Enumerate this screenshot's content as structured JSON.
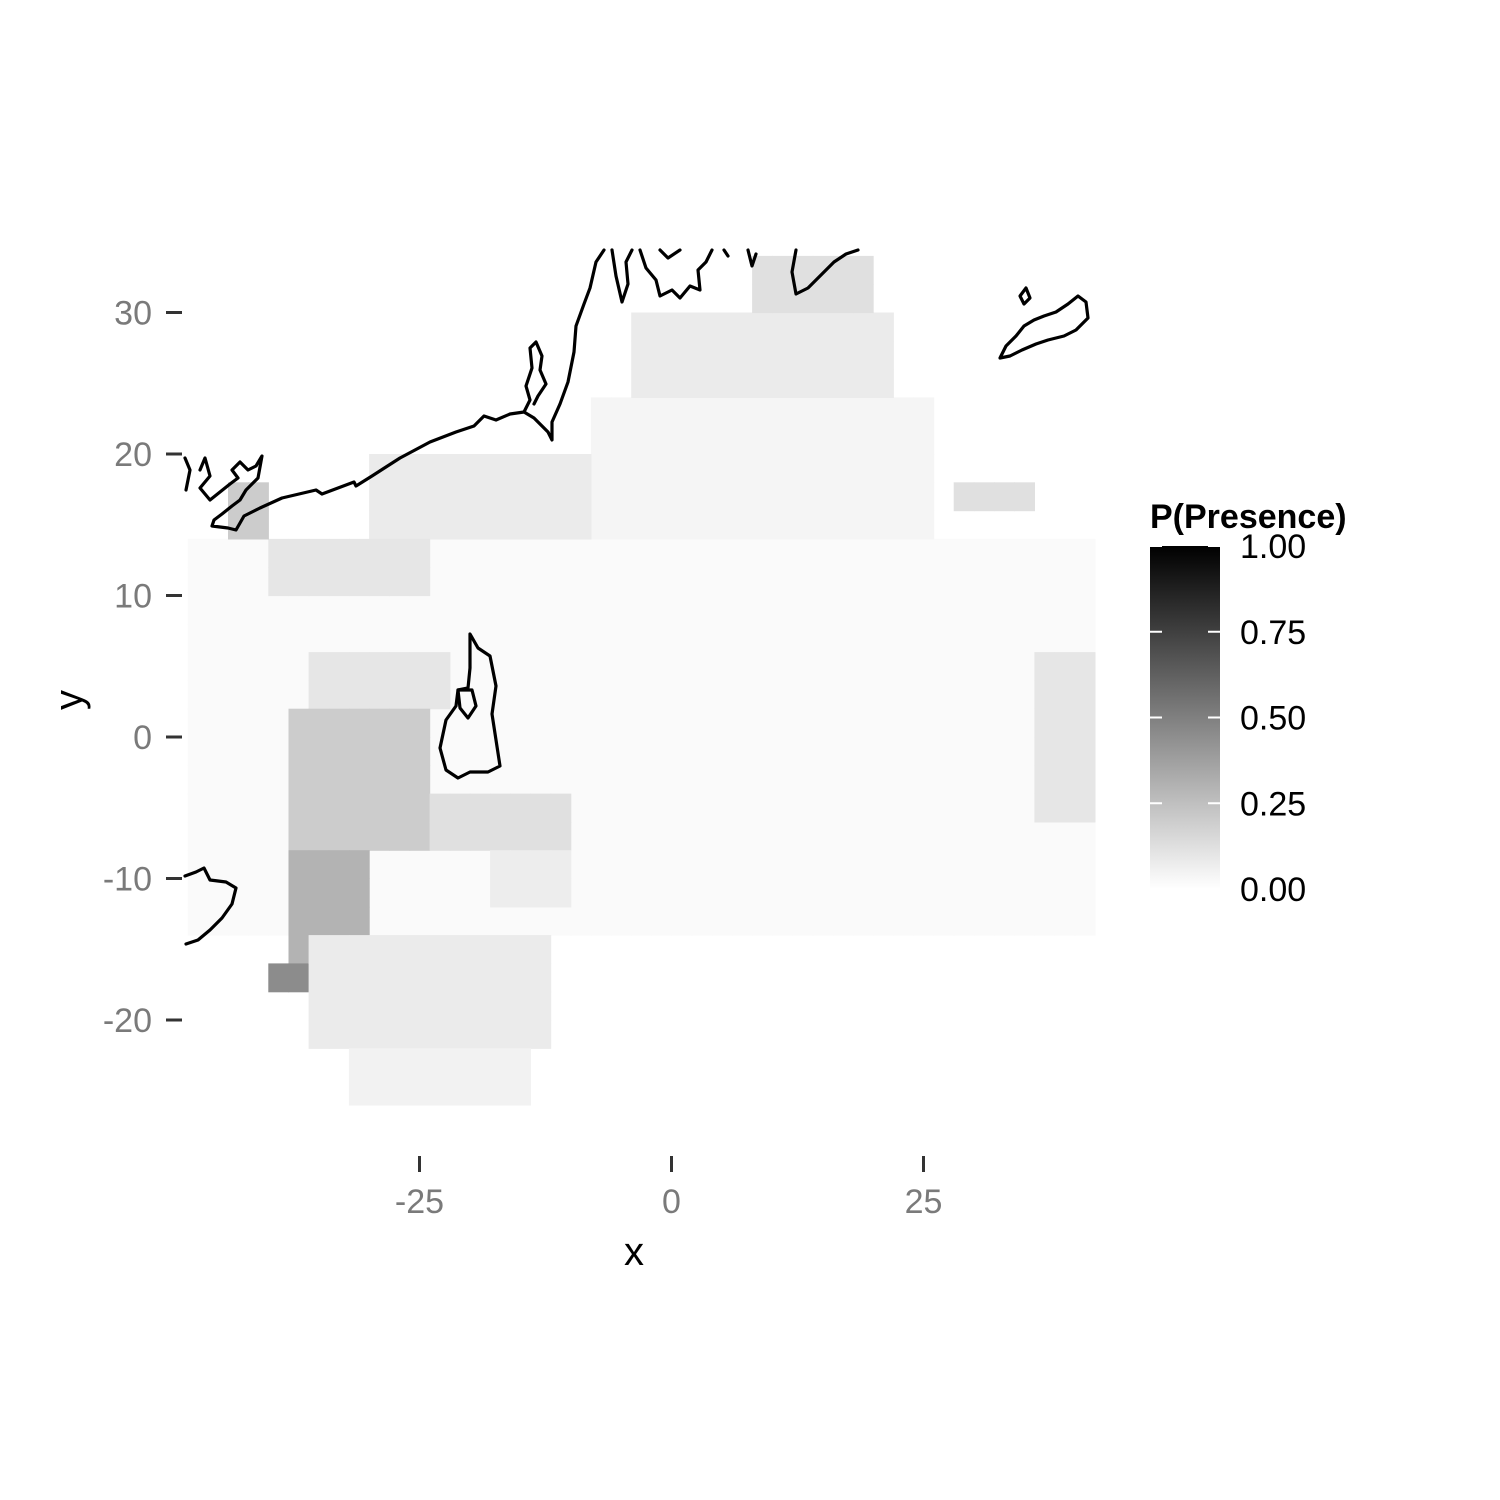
{
  "chart_data": {
    "type": "heatmap",
    "x_axis": {
      "label": "x",
      "ticks": [
        -25,
        0,
        25
      ],
      "tick_labels": [
        "-25",
        "0",
        "25"
      ]
    },
    "y_axis": {
      "label": "y",
      "ticks": [
        -20,
        -10,
        0,
        10,
        20,
        30
      ],
      "tick_labels": [
        "-20",
        "-10",
        "0",
        "10",
        "20",
        "30"
      ]
    },
    "legend": {
      "title": "P(Presence)",
      "placement": "right",
      "breaks": [
        1.0,
        0.75,
        0.5,
        0.25,
        0.0
      ],
      "labels": [
        "1.00",
        "0.75",
        "0.50",
        "0.25",
        "0.00"
      ],
      "color_low": "#ffffff",
      "color_high": "#000000"
    },
    "cell_size": 2,
    "grid": false,
    "overlay": "coastline outlines (black)",
    "regions": [
      {
        "x": [
          -48,
          42
        ],
        "y": [
          -14,
          14
        ],
        "value": 0.02
      },
      {
        "x": [
          -8,
          26
        ],
        "y": [
          14,
          24
        ],
        "value": 0.04
      },
      {
        "x": [
          -4,
          22
        ],
        "y": [
          24,
          30
        ],
        "value": 0.08
      },
      {
        "x": [
          8,
          20
        ],
        "y": [
          30,
          34
        ],
        "value": 0.12
      },
      {
        "x": [
          -30,
          -8
        ],
        "y": [
          14,
          20
        ],
        "value": 0.08
      },
      {
        "x": [
          -40,
          -24
        ],
        "y": [
          10,
          14
        ],
        "value": 0.1
      },
      {
        "x": [
          -36,
          -22
        ],
        "y": [
          2,
          6
        ],
        "value": 0.1
      },
      {
        "x": [
          -38,
          -24
        ],
        "y": [
          -8,
          2
        ],
        "value": 0.2
      },
      {
        "x": [
          -38,
          -30
        ],
        "y": [
          -16,
          -8
        ],
        "value": 0.3
      },
      {
        "x": [
          -40,
          -34
        ],
        "y": [
          -18,
          -16
        ],
        "value": 0.45
      },
      {
        "x": [
          -36,
          -12
        ],
        "y": [
          -22,
          -14
        ],
        "value": 0.08
      },
      {
        "x": [
          -32,
          -14
        ],
        "y": [
          -26,
          -22
        ],
        "value": 0.05
      },
      {
        "x": [
          -24,
          -10
        ],
        "y": [
          -8,
          -4
        ],
        "value": 0.12
      },
      {
        "x": [
          -18,
          -10
        ],
        "y": [
          -12,
          -8
        ],
        "value": 0.07
      },
      {
        "x": [
          36,
          42
        ],
        "y": [
          -6,
          6
        ],
        "value": 0.1
      },
      {
        "x": [
          28,
          36
        ],
        "y": [
          16,
          18
        ],
        "value": 0.12
      },
      {
        "x": [
          -44,
          -40
        ],
        "y": [
          14,
          18
        ],
        "value": 0.2
      }
    ]
  }
}
